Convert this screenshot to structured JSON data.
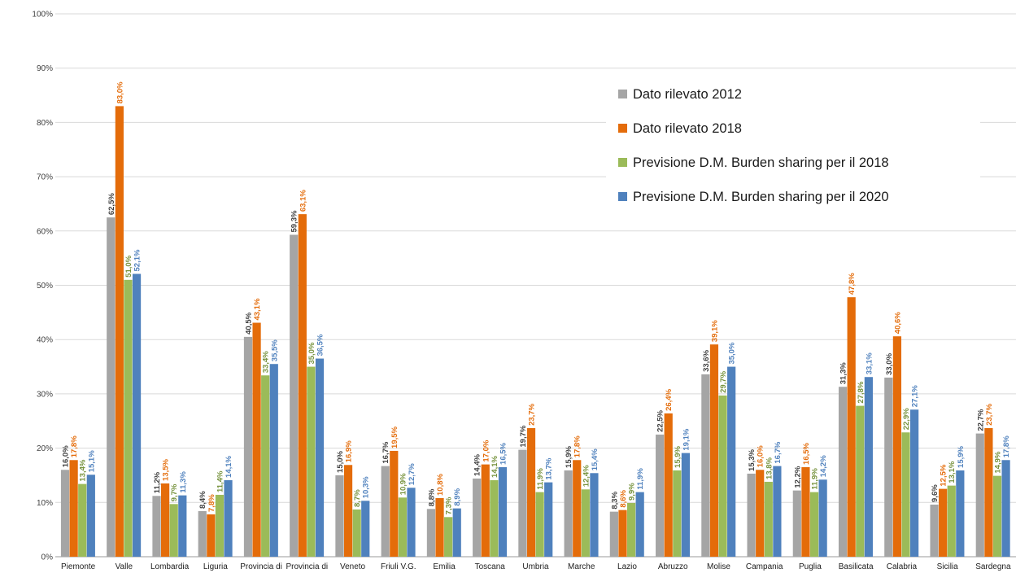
{
  "chart_data": {
    "type": "bar",
    "title": "",
    "xlabel": "",
    "ylabel": "",
    "ylim": [
      0,
      100
    ],
    "y_ticks": [
      "0%",
      "10%",
      "20%",
      "30%",
      "40%",
      "50%",
      "60%",
      "70%",
      "80%",
      "90%",
      "100%"
    ],
    "grid": true,
    "legend_position": "top-right",
    "categories": [
      "Piemonte",
      "Valle",
      "Lombardia",
      "Liguria",
      "Provincia di",
      "Provincia di",
      "Veneto",
      "Friuli V.G.",
      "Emilia",
      "Toscana",
      "Umbria",
      "Marche",
      "Lazio",
      "Abruzzo",
      "Molise",
      "Campania",
      "Puglia",
      "Basilicata",
      "Calabria",
      "Sicilia",
      "Sardegna"
    ],
    "series": [
      {
        "name": "Dato rilevato 2012",
        "color": "#a5a5a5",
        "label_color": "#404040",
        "values": [
          16.0,
          62.5,
          11.2,
          8.4,
          40.5,
          59.3,
          15.0,
          16.7,
          8.8,
          14.4,
          19.7,
          15.9,
          8.3,
          22.5,
          33.6,
          15.3,
          12.2,
          31.3,
          33.0,
          9.6,
          22.7
        ],
        "labels": [
          "16,0%",
          "62,5%",
          "11,2%",
          "8,4%",
          "40,5%",
          "59,3%",
          "15,0%",
          "16,7%",
          "8,8%",
          "14,4%",
          "19,7%",
          "15,9%",
          "8,3%",
          "22,5%",
          "33,6%",
          "15,3%",
          "12,2%",
          "31,3%",
          "33,0%",
          "9,6%",
          "22,7%"
        ]
      },
      {
        "name": "Dato rilevato 2018",
        "color": "#e46c0a",
        "label_color": "#e46c0a",
        "values": [
          17.8,
          83.0,
          13.5,
          7.8,
          43.1,
          63.1,
          16.9,
          19.5,
          10.8,
          17.0,
          23.7,
          17.8,
          8.6,
          26.4,
          39.1,
          16.0,
          16.5,
          47.8,
          40.6,
          12.5,
          23.7
        ],
        "labels": [
          "17,8%",
          "83,0%",
          "13,5%",
          "7,8%",
          "43,1%",
          "63,1%",
          "16,9%",
          "19,5%",
          "10,8%",
          "17,0%",
          "23,7%",
          "17,8%",
          "8,6%",
          "26,4%",
          "39,1%",
          "16,0%",
          "16,5%",
          "47,8%",
          "40,6%",
          "12,5%",
          "23,7%"
        ]
      },
      {
        "name": "Previsione D.M. Burden sharing per il 2018",
        "color": "#9bbb59",
        "label_color": "#76923c",
        "values": [
          13.4,
          51.0,
          9.7,
          11.4,
          33.4,
          35.0,
          8.7,
          10.9,
          7.3,
          14.1,
          11.9,
          12.4,
          9.9,
          15.9,
          29.7,
          13.8,
          11.9,
          27.8,
          22.9,
          13.1,
          14.9
        ],
        "labels": [
          "13,4%",
          "51,0%",
          "9,7%",
          "11,4%",
          "33,4%",
          "35,0%",
          "8,7%",
          "10,9%",
          "7,3%",
          "14,1%",
          "11,9%",
          "12,4%",
          "9,9%",
          "15,9%",
          "29,7%",
          "13,8%",
          "11,9%",
          "27,8%",
          "22,9%",
          "13,1%",
          "14,9%"
        ]
      },
      {
        "name": "Previsione D.M. Burden sharing per il 2020",
        "color": "#4f81bd",
        "label_color": "#4f81bd",
        "values": [
          15.1,
          52.1,
          11.3,
          14.1,
          35.5,
          36.5,
          10.3,
          12.7,
          8.9,
          16.5,
          13.7,
          15.4,
          11.9,
          19.1,
          35.0,
          16.7,
          14.2,
          33.1,
          27.1,
          15.9,
          17.8
        ],
        "labels": [
          "15,1%",
          "52,1%",
          "11,3%",
          "14,1%",
          "35,5%",
          "36,5%",
          "10,3%",
          "12,7%",
          "8,9%",
          "16,5%",
          "13,7%",
          "15,4%",
          "11,9%",
          "19,1%",
          "35,0%",
          "16,7%",
          "14,2%",
          "33,1%",
          "27,1%",
          "15,9%",
          "17,8%"
        ]
      }
    ]
  }
}
